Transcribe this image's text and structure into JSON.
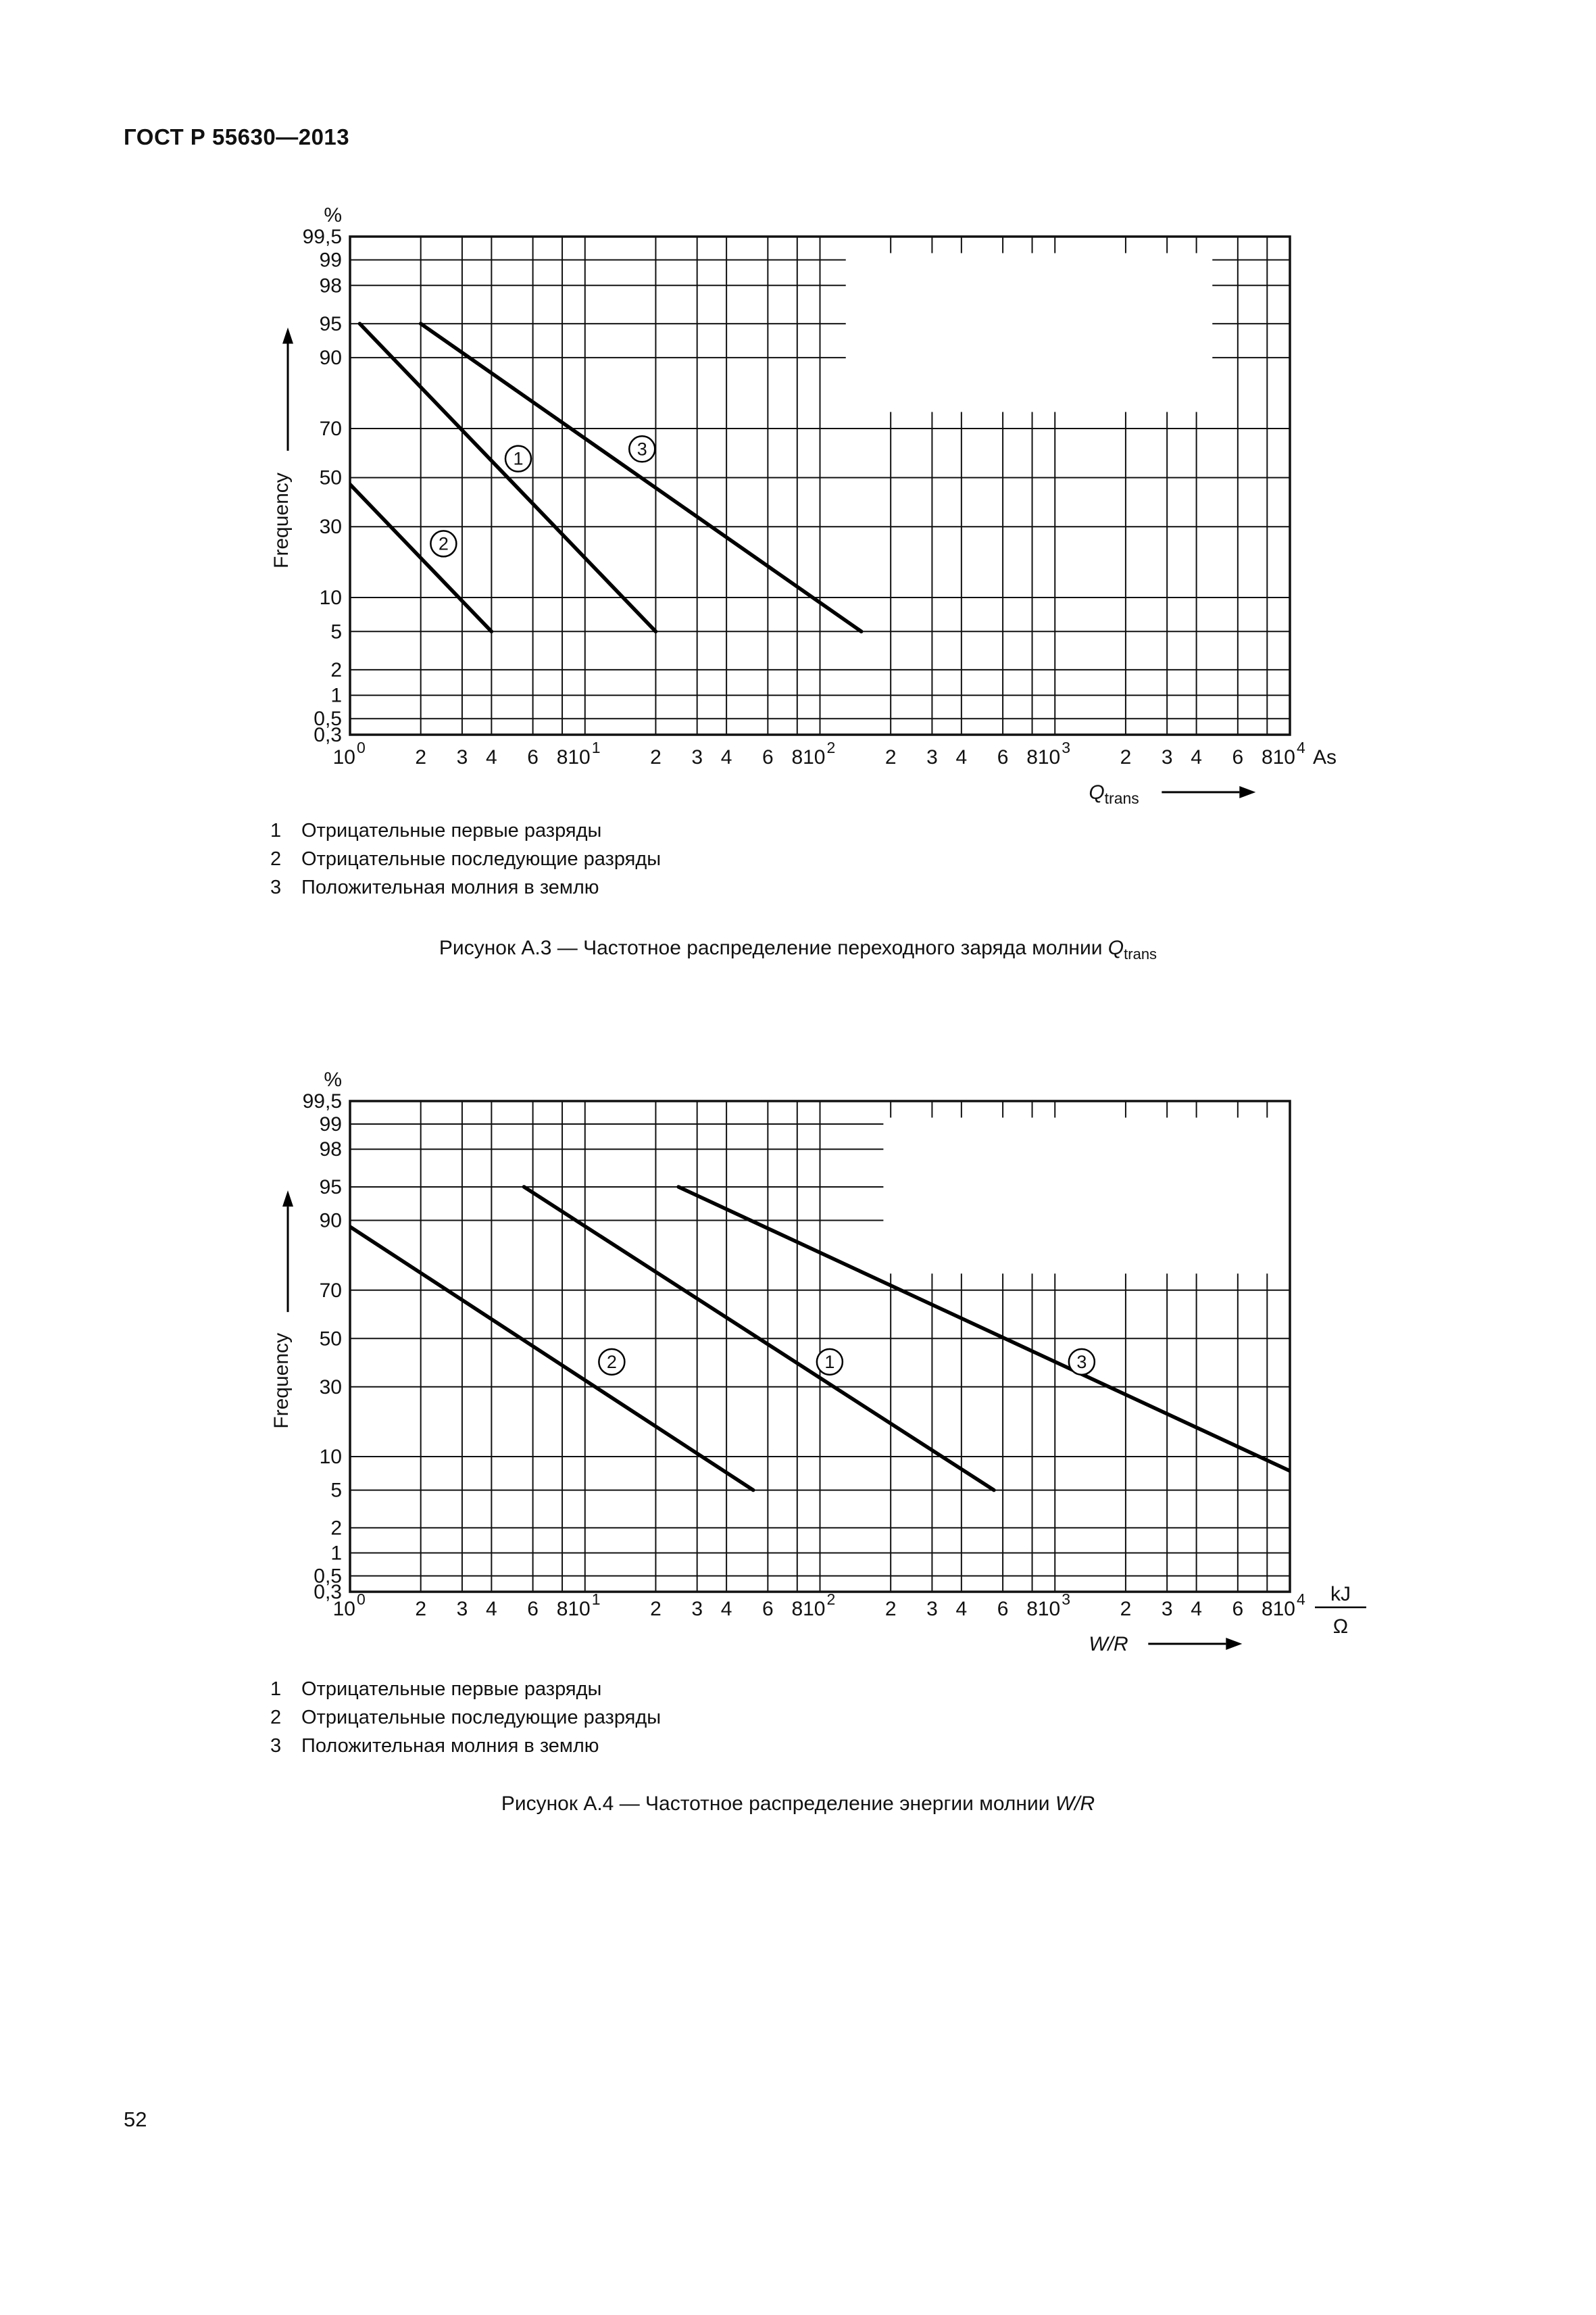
{
  "page": {
    "header": "ГОСТ Р 55630—2013",
    "page_number": "52"
  },
  "figure_a3": {
    "legend": [
      {
        "num": "1",
        "label": "Отрицательные первые разряды"
      },
      {
        "num": "2",
        "label": "Отрицательные последующие разряды"
      },
      {
        "num": "3",
        "label": "Положительная молния в землю"
      }
    ],
    "caption": {
      "text": "Рисунок А.3  — Частотное распределение переходного заряда молнии ",
      "symbol": "Q",
      "symbol_sub": "trans"
    }
  },
  "figure_a4": {
    "legend": [
      {
        "num": "1",
        "label": "Отрицательные первые разряды"
      },
      {
        "num": "2",
        "label": "Отрицательные последующие разряды"
      },
      {
        "num": "3",
        "label": "Положительная молния в землю"
      }
    ],
    "caption": {
      "text": "Рисунок А.4 — Частотное распределение энергии молнии ",
      "symbol": "W/R"
    }
  },
  "chart_data": [
    {
      "id": "figure-a3",
      "type": "line",
      "title": "Рисунок А.3 — Частотное распределение переходного заряда молнии Qtrans",
      "x_scale": "log",
      "x_range": [
        1,
        10000
      ],
      "x_unit": "As",
      "x_axis_symbol": "Q",
      "x_axis_symbol_sub": "trans",
      "x_minor_multipliers": [
        2,
        3,
        4,
        6,
        8
      ],
      "x_minor_tick_labels": [
        "2",
        "3",
        "4",
        "6",
        "8"
      ],
      "y_scale": "normal-probability",
      "y_unit": "%",
      "y_axis_label": "Frequency",
      "y_ticks": [
        99.5,
        99,
        98,
        95,
        90,
        70,
        50,
        30,
        10,
        5,
        2,
        1,
        0.5,
        0.3
      ],
      "y_tick_labels": [
        "99,5",
        "99",
        "98",
        "95",
        "90",
        "70",
        "50",
        "30",
        "10",
        "5",
        "2",
        "1",
        "0,5",
        "0,3"
      ],
      "series": [
        {
          "marker": "1",
          "name": "Отрицательные первые разряды",
          "points": [
            [
              1.1,
              95
            ],
            [
              20,
              5
            ]
          ],
          "label_at": [
            5.2,
            58
          ]
        },
        {
          "marker": "2",
          "name": "Отрицательные последующие разряды",
          "points": [
            [
              0.22,
              95
            ],
            [
              4,
              5
            ]
          ],
          "label_at": [
            2.5,
            24
          ]
        },
        {
          "marker": "3",
          "name": "Положительная молния в землю",
          "points": [
            [
              2,
              95
            ],
            [
              150,
              5
            ]
          ],
          "label_at": [
            17.5,
            62
          ]
        }
      ],
      "blank_region": {
        "x_log_from": 2.11,
        "x_log_to": 3.67,
        "y_pct_from": 99.5,
        "y_pct_to": 70
      }
    },
    {
      "id": "figure-a4",
      "type": "line",
      "title": "Рисунок А.4 — Частотное распределение энергии молнии W/R",
      "x_scale": "log",
      "x_range": [
        1,
        10000
      ],
      "x_unit": "kJ/Ω",
      "x_unit_numerator": "kJ",
      "x_unit_denominator": "Ω",
      "x_axis_symbol": "W/R",
      "x_minor_multipliers": [
        2,
        3,
        4,
        6,
        8
      ],
      "x_minor_tick_labels": [
        "2",
        "3",
        "4",
        "6",
        "8"
      ],
      "y_scale": "normal-probability",
      "y_unit": "%",
      "y_axis_label": "Frequency",
      "y_ticks": [
        99.5,
        99,
        98,
        95,
        90,
        70,
        50,
        30,
        10,
        5,
        2,
        1,
        0.5,
        0.3
      ],
      "y_tick_labels": [
        "99,5",
        "99",
        "98",
        "95",
        "90",
        "70",
        "50",
        "30",
        "10",
        "5",
        "2",
        "1",
        "0,5",
        "0,3"
      ],
      "series": [
        {
          "marker": "1",
          "name": "Отрицательные первые разряды",
          "points": [
            [
              5.5,
              95
            ],
            [
              550,
              5
            ]
          ],
          "label_at": [
            110,
            40
          ]
        },
        {
          "marker": "2",
          "name": "Отрицательные последующие разряды",
          "points": [
            [
              0.55,
              95
            ],
            [
              52,
              5
            ]
          ],
          "label_at": [
            13,
            40
          ]
        },
        {
          "marker": "3",
          "name": "Положительная молния в землю",
          "points": [
            [
              25,
              95
            ],
            [
              15000,
              5
            ]
          ],
          "label_at": [
            1300,
            40
          ]
        }
      ],
      "blank_region": {
        "x_log_from": 2.27,
        "x_log_to": 4.0,
        "y_pct_from": 99.5,
        "y_pct_to": 70
      }
    }
  ]
}
